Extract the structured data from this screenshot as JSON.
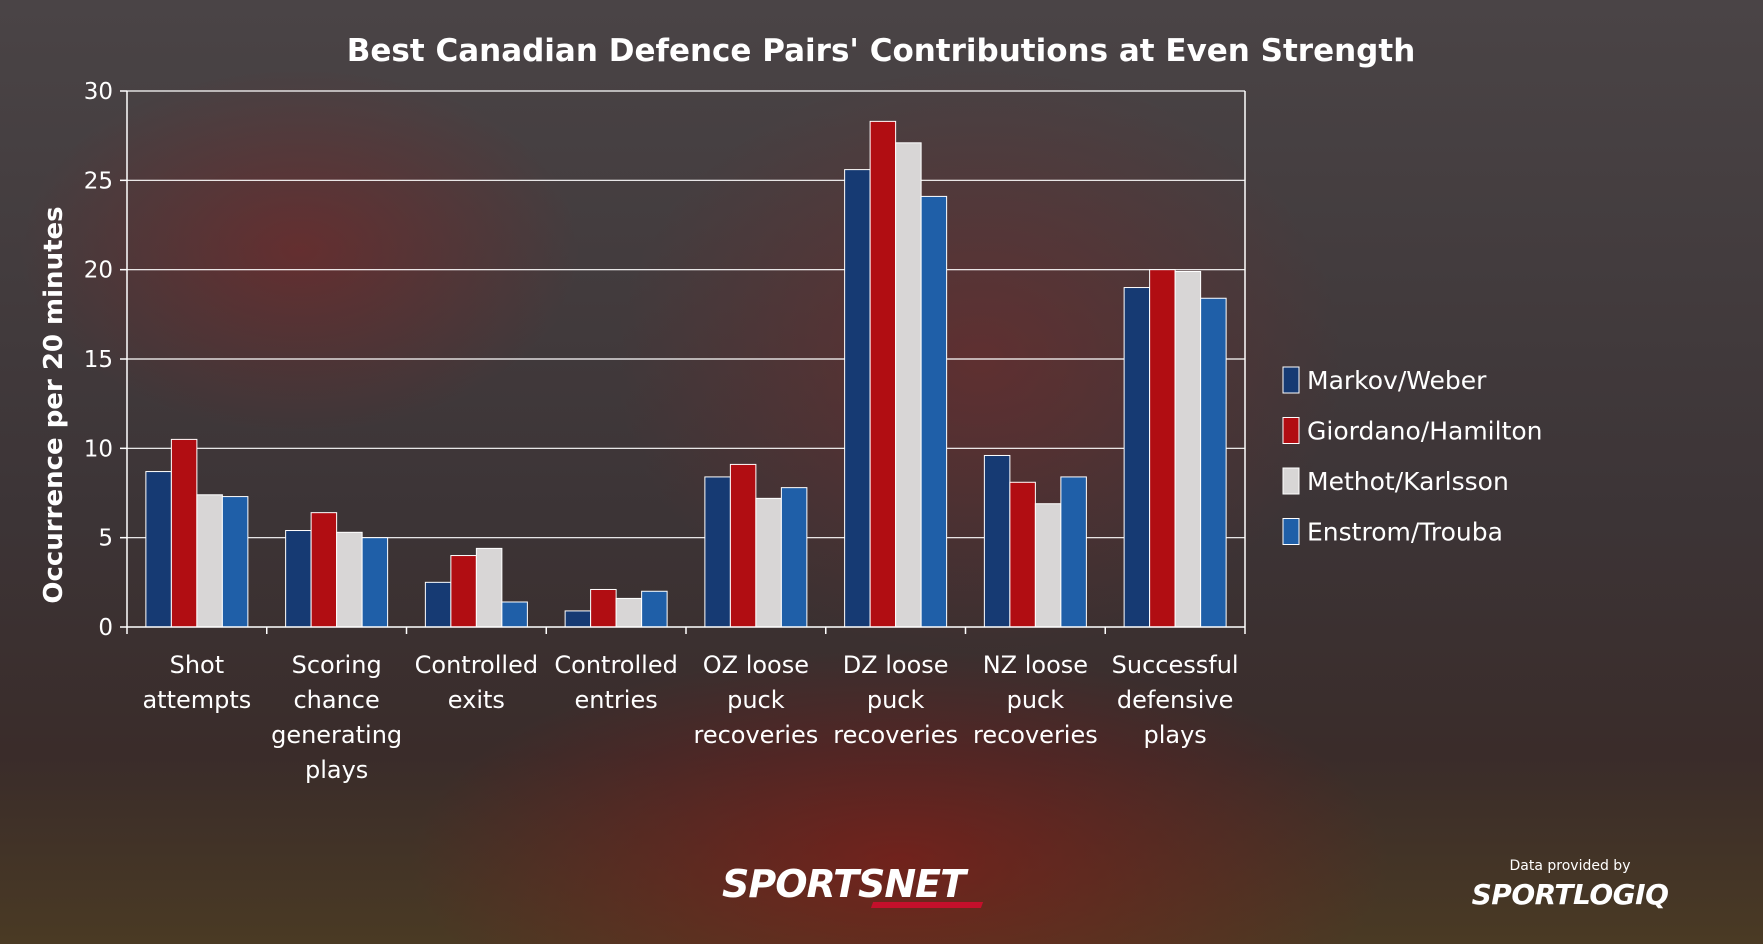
{
  "chart_data": {
    "type": "bar",
    "title": "Best Canadian Defence Pairs' Contributions at Even Strength",
    "ylabel": "Occurrence per 20 minutes",
    "xlabel": "",
    "ylim": [
      0,
      30
    ],
    "yticks": [
      "0",
      "5",
      "10",
      "15",
      "20",
      "25",
      "30"
    ],
    "grid": true,
    "legend_position": "right",
    "categories": [
      [
        "Shot",
        "attempts"
      ],
      [
        "Scoring",
        "chance",
        "generating",
        "plays"
      ],
      [
        "Controlled",
        "exits"
      ],
      [
        "Controlled",
        "entries"
      ],
      [
        "OZ loose",
        "puck",
        "recoveries"
      ],
      [
        "DZ loose",
        "puck",
        "recoveries"
      ],
      [
        "NZ loose",
        "puck",
        "recoveries"
      ],
      [
        "Successful",
        "defensive",
        "plays"
      ]
    ],
    "series": [
      {
        "name": "Markov/Weber",
        "color": "#163a73",
        "values": [
          8.7,
          5.4,
          2.5,
          0.9,
          8.4,
          25.6,
          9.6,
          19.0
        ]
      },
      {
        "name": "Giordano/Hamilton",
        "color": "#b10d12",
        "values": [
          10.5,
          6.4,
          4.0,
          2.1,
          9.1,
          28.3,
          8.1,
          20.0
        ]
      },
      {
        "name": "Methot/Karlsson",
        "color": "#d8d6d6",
        "values": [
          7.4,
          5.3,
          4.4,
          1.6,
          7.2,
          27.1,
          6.9,
          19.9
        ]
      },
      {
        "name": "Enstrom/Trouba",
        "color": "#1f5fa8",
        "values": [
          7.3,
          5.0,
          1.4,
          2.0,
          7.8,
          24.1,
          8.4,
          18.4
        ]
      }
    ]
  },
  "branding": {
    "sportsnet_logo": "SPORTSNET",
    "credit_line": "Data provided by",
    "sportlogiq_logo": "SPORTLOGIQ"
  }
}
